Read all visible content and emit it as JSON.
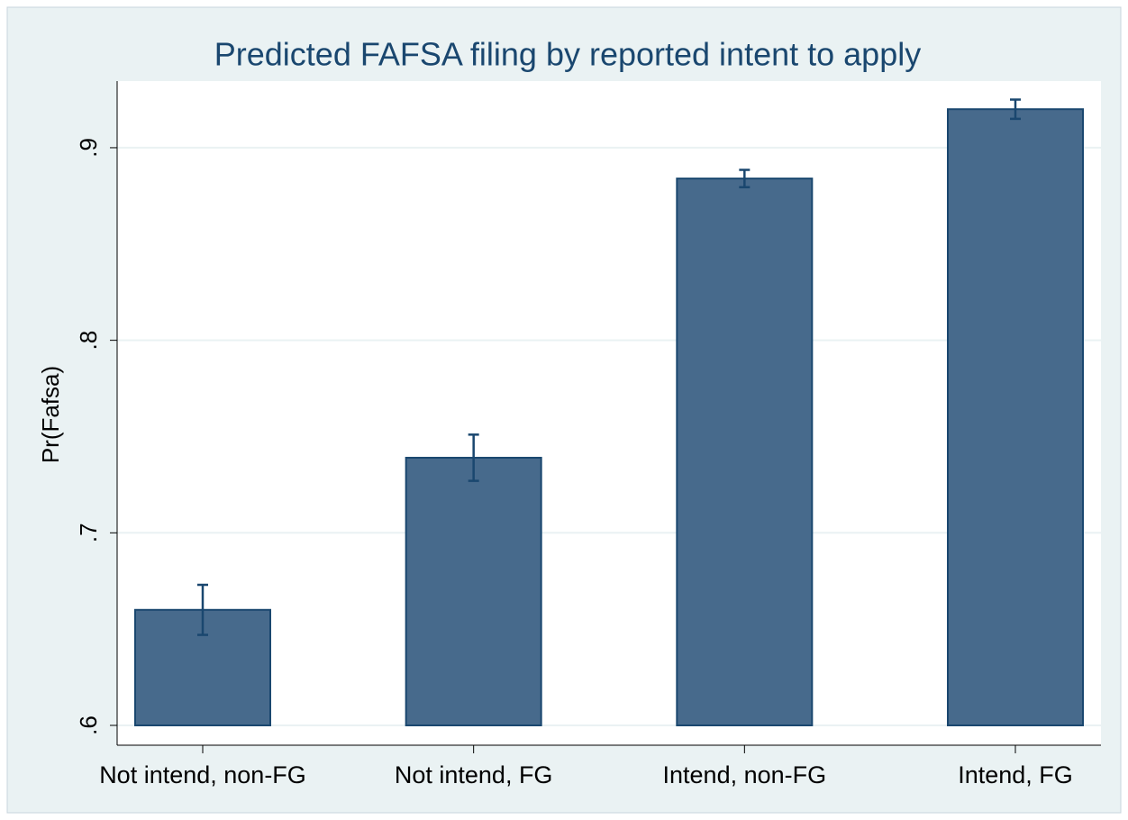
{
  "chart_data": {
    "type": "bar",
    "title": "Predicted FAFSA filing by reported intent to apply",
    "y_label": "Pr(Fafsa)",
    "categories": [
      "Not intend, non-FG",
      "Not intend, FG",
      "Intend, non-FG",
      "Intend, FG"
    ],
    "values": [
      0.66,
      0.739,
      0.884,
      0.92
    ],
    "errors": [
      0.013,
      0.012,
      0.0045,
      0.005
    ],
    "color": "#476a8c",
    "ylim": [
      0.6,
      0.9346
    ],
    "yticks": [
      {
        "value": 0.6,
        "label": ".6"
      },
      {
        "value": 0.7,
        "label": ".7"
      },
      {
        "value": 0.8,
        "label": ".8"
      },
      {
        "value": 0.9,
        "label": ".9"
      }
    ],
    "grid": true
  }
}
